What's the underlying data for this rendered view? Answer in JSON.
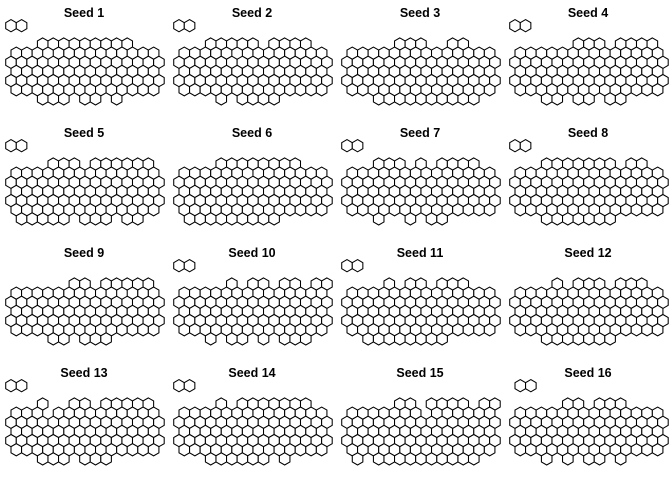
{
  "figure": {
    "type": "small-multiples",
    "description_kind": "hexagonal-lattice",
    "hex_fill": "#ffffff",
    "hex_stroke": "#000000",
    "rows": 4,
    "cols": 4
  },
  "panels": [
    {
      "title": "Seed 1"
    },
    {
      "title": "Seed 2"
    },
    {
      "title": "Seed 3"
    },
    {
      "title": "Seed 4"
    },
    {
      "title": "Seed 5"
    },
    {
      "title": "Seed 6"
    },
    {
      "title": "Seed 7"
    },
    {
      "title": "Seed 8"
    },
    {
      "title": "Seed 9"
    },
    {
      "title": "Seed 10"
    },
    {
      "title": "Seed 11"
    },
    {
      "title": "Seed 12"
    },
    {
      "title": "Seed 13"
    },
    {
      "title": "Seed 14"
    },
    {
      "title": "Seed 15"
    },
    {
      "title": "Seed 16"
    }
  ]
}
